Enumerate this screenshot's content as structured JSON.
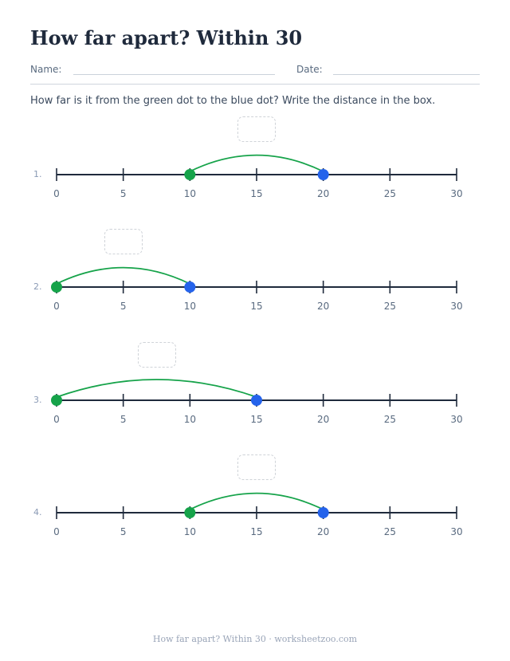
{
  "title": "How far apart? Within 30",
  "name_label": "Name:",
  "date_label": "Date:",
  "instructions": "How far is it from the green dot to the blue dot? Write the distance in the box.",
  "colors": {
    "start_dot": "#16a34a",
    "end_dot": "#2563eb",
    "arc": "#16a34a",
    "line": "#1f2a3c"
  },
  "number_line": {
    "min": 0,
    "max": 30,
    "step": 5,
    "labels": [
      "0",
      "5",
      "10",
      "15",
      "20",
      "25",
      "30"
    ]
  },
  "problems": [
    {
      "label": "1.",
      "start": 10,
      "end": 20
    },
    {
      "label": "2.",
      "start": 0,
      "end": 10
    },
    {
      "label": "3.",
      "start": 0,
      "end": 15
    },
    {
      "label": "4.",
      "start": 10,
      "end": 20
    }
  ],
  "footer": "How far apart? Within 30 · worksheetzoo.com"
}
